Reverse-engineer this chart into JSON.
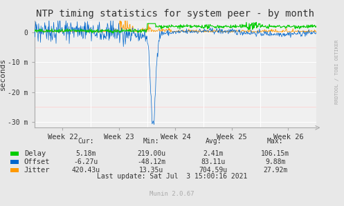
{
  "title": "NTP timing statistics for system peer - by month",
  "ylabel": "seconds",
  "bg_color": "#e8e8e8",
  "plot_bg_color": "#f0f0f0",
  "grid_color": "#ffffff",
  "minor_grid_color": "#ffcccc",
  "ylim": [
    -0.032,
    0.004
  ],
  "yticks": [
    0,
    -0.01,
    -0.02,
    -0.03
  ],
  "ytick_labels": [
    "0",
    "-10 m",
    "-20 m",
    "-30 m"
  ],
  "week_labels": [
    "Week 22",
    "Week 23",
    "Week 24",
    "Week 25",
    "Week 26"
  ],
  "delay_color": "#00cc00",
  "offset_color": "#0066cc",
  "jitter_color": "#ff9900",
  "watermark": "RRDTOOL / TOBI OETIKER",
  "legend_items": [
    "Delay",
    "Offset",
    "Jitter"
  ],
  "stats_header": [
    "Cur:",
    "Min:",
    "Avg:",
    "Max:"
  ],
  "delay_stats": [
    "5.18m",
    "219.00u",
    "2.41m",
    "106.15m"
  ],
  "offset_stats": [
    "-6.27u",
    "-48.12m",
    "83.11u",
    "9.88m"
  ],
  "jitter_stats": [
    "420.43u",
    "13.35u",
    "704.59u",
    "27.92m"
  ],
  "last_update": "Last update: Sat Jul  3 15:00:16 2021",
  "munin_version": "Munin 2.0.67",
  "seed": 42
}
